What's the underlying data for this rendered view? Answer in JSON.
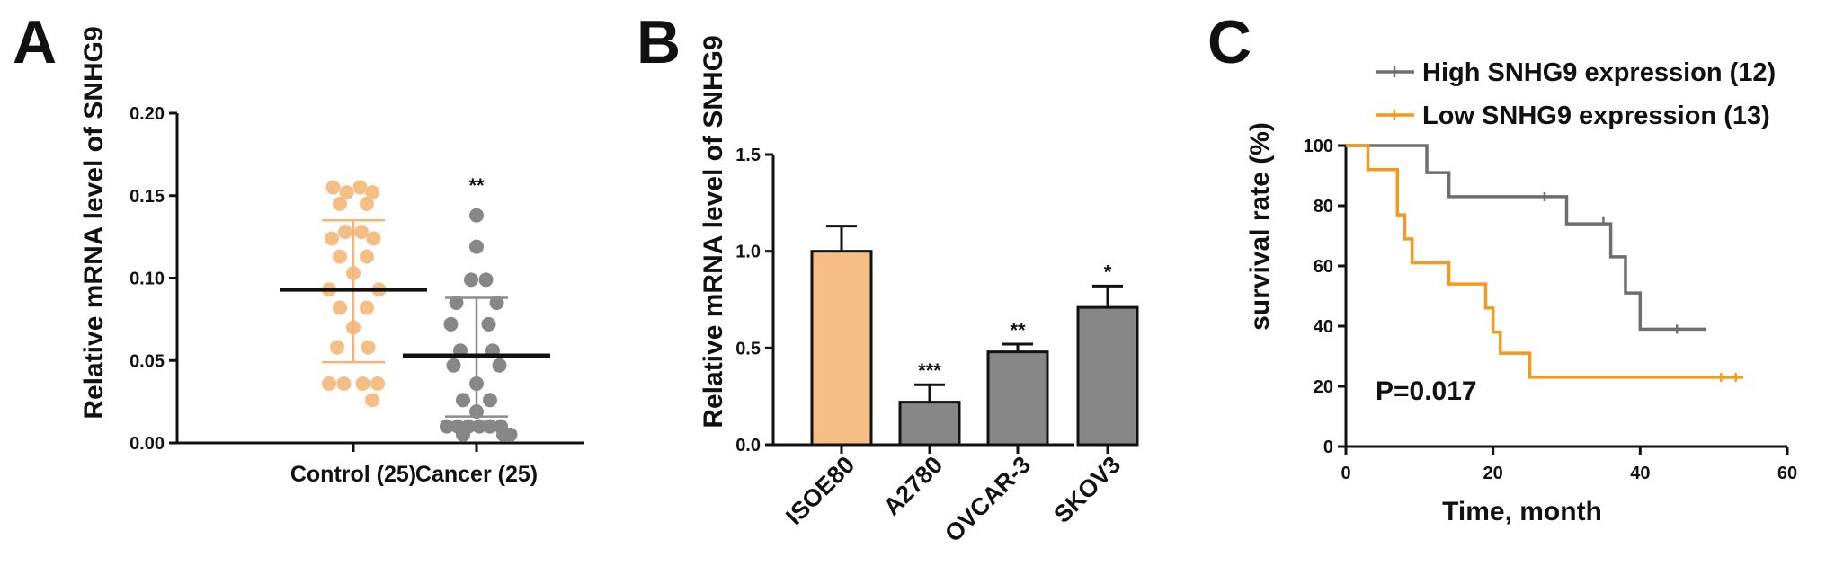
{
  "panels": [
    "A",
    "B",
    "C"
  ],
  "chart_data": [
    {
      "panel": "A",
      "type": "scatter",
      "ylabel": "Relative mRNA level of SNHG9",
      "ylim": [
        0,
        0.2
      ],
      "yticks": [
        "0.00",
        "0.05",
        "0.10",
        "0.15",
        "0.20"
      ],
      "categories": [
        "Control (25)",
        "Cancer (25)"
      ],
      "colors": [
        "#F5BE85",
        "#878787"
      ],
      "significance": [
        "",
        "**"
      ],
      "means": [
        0.093,
        0.053
      ],
      "sd_upper": [
        0.135,
        0.088
      ],
      "sd_lower": [
        0.049,
        0.016
      ],
      "series": [
        {
          "name": "Control (25)",
          "points": [
            [
              -0.075,
              0.155
            ],
            [
              -0.025,
              0.152
            ],
            [
              0.025,
              0.155
            ],
            [
              0.07,
              0.152
            ],
            [
              -0.05,
              0.145
            ],
            [
              0.05,
              0.145
            ],
            [
              -0.08,
              0.124
            ],
            [
              -0.03,
              0.128
            ],
            [
              0.03,
              0.128
            ],
            [
              0.075,
              0.124
            ],
            [
              -0.05,
              0.113
            ],
            [
              0.05,
              0.113
            ],
            [
              0.0,
              0.103
            ],
            [
              -0.09,
              0.093
            ],
            [
              0.095,
              0.093
            ],
            [
              -0.05,
              0.082
            ],
            [
              0.05,
              0.082
            ],
            [
              0.0,
              0.07
            ],
            [
              -0.06,
              0.058
            ],
            [
              0.055,
              0.058
            ],
            [
              -0.09,
              0.036
            ],
            [
              -0.035,
              0.036
            ],
            [
              0.035,
              0.036
            ],
            [
              0.09,
              0.036
            ],
            [
              0.07,
              0.026
            ]
          ]
        },
        {
          "name": "Cancer (25)",
          "points": [
            [
              0.0,
              0.138
            ],
            [
              0.0,
              0.119
            ],
            [
              -0.02,
              0.099
            ],
            [
              0.035,
              0.099
            ],
            [
              -0.075,
              0.085
            ],
            [
              0.075,
              0.085
            ],
            [
              -0.095,
              0.072
            ],
            [
              0.045,
              0.072
            ],
            [
              -0.06,
              0.056
            ],
            [
              0.06,
              0.056
            ],
            [
              -0.085,
              0.047
            ],
            [
              0.085,
              0.047
            ],
            [
              0.0,
              0.036
            ],
            [
              -0.05,
              0.026
            ],
            [
              0.05,
              0.026
            ],
            [
              0.0,
              0.019
            ],
            [
              -0.11,
              0.01
            ],
            [
              -0.07,
              0.01
            ],
            [
              -0.03,
              0.01
            ],
            [
              0.01,
              0.01
            ],
            [
              0.05,
              0.01
            ],
            [
              0.09,
              0.01
            ],
            [
              -0.05,
              0.005
            ],
            [
              0.1,
              0.005
            ],
            [
              0.125,
              0.005
            ]
          ]
        }
      ]
    },
    {
      "panel": "B",
      "type": "bar",
      "ylabel": "Relative mRNA level of SNHG9",
      "ylim": [
        0,
        1.5
      ],
      "yticks": [
        "0.0",
        "0.5",
        "1.0",
        "1.5"
      ],
      "categories": [
        "ISOE80",
        "A2780",
        "OVCAR-3",
        "SKOV3"
      ],
      "values": [
        1.0,
        0.22,
        0.48,
        0.71
      ],
      "errors": [
        0.13,
        0.09,
        0.04,
        0.11
      ],
      "colors": [
        "#F5BE85",
        "#878787",
        "#878787",
        "#878787"
      ],
      "significance": [
        "",
        "***",
        "**",
        "*"
      ]
    },
    {
      "panel": "C",
      "type": "line",
      "xlabel": "Time, month",
      "ylabel": "survival rate (%)",
      "xlim": [
        0,
        60
      ],
      "ylim": [
        0,
        100
      ],
      "xticks": [
        "0",
        "20",
        "40",
        "60"
      ],
      "yticks": [
        "0",
        "20",
        "40",
        "60",
        "80",
        "100"
      ],
      "annotation": "P=0.017",
      "legend_position": "top",
      "series": [
        {
          "name": "High SNHG9 expression (12)",
          "color": "#6E6E6E",
          "steps": [
            [
              0,
              100
            ],
            [
              11,
              100
            ],
            [
              11,
              91
            ],
            [
              14,
              91
            ],
            [
              14,
              83
            ],
            [
              30,
              83
            ],
            [
              30,
              74
            ],
            [
              36,
              74
            ],
            [
              36,
              63
            ],
            [
              38,
              63
            ],
            [
              38,
              51
            ],
            [
              40,
              51
            ],
            [
              40,
              39
            ],
            [
              49,
              39
            ]
          ],
          "censored": [
            [
              27,
              83
            ],
            [
              35,
              75
            ],
            [
              45,
              39
            ]
          ]
        },
        {
          "name": "Low SNHG9 expression (13)",
          "color": "#F39A1E",
          "steps": [
            [
              0,
              100
            ],
            [
              3,
              100
            ],
            [
              3,
              92
            ],
            [
              7,
              92
            ],
            [
              7,
              77
            ],
            [
              8,
              77
            ],
            [
              8,
              69
            ],
            [
              9,
              69
            ],
            [
              9,
              61
            ],
            [
              14,
              61
            ],
            [
              14,
              54
            ],
            [
              19,
              54
            ],
            [
              19,
              46
            ],
            [
              20,
              46
            ],
            [
              20,
              38
            ],
            [
              21,
              38
            ],
            [
              21,
              31
            ],
            [
              25,
              31
            ],
            [
              25,
              23
            ],
            [
              54,
              23
            ]
          ],
          "censored": [
            [
              51,
              23
            ],
            [
              53,
              23
            ]
          ]
        }
      ]
    }
  ]
}
